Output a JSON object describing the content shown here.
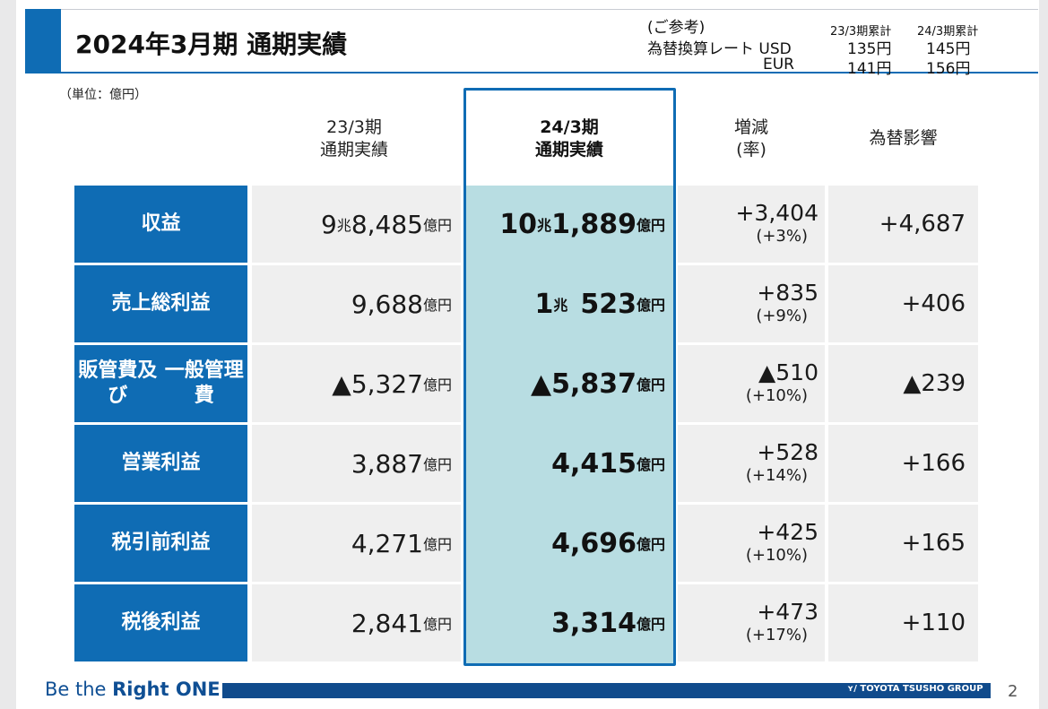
{
  "title": "2024年3月期 通期実績",
  "fx_reference": {
    "heading": "(ご参考)",
    "rate_label": "為替換算レート USD",
    "eur_label": "EUR",
    "col_prev": "23/3期累計",
    "col_curr": "24/3期累計",
    "usd_prev": "135円",
    "usd_curr": "145円",
    "eur_prev": "141円",
    "eur_curr": "156円"
  },
  "unit_note": "（単位：億円）",
  "columns": {
    "prev": [
      "23/3期",
      "通期実績"
    ],
    "curr": [
      "24/3期",
      "通期実績"
    ],
    "change": [
      "増減",
      "(率)"
    ],
    "fx_effect": "為替影響"
  },
  "rows": [
    {
      "label": [
        "収益"
      ],
      "prev_big": "9",
      "prev_mid": "兆",
      "prev_main": "8,485",
      "prev_unit": "億円",
      "curr_big": "10",
      "curr_mid": "兆",
      "curr_main": "1,889",
      "curr_unit": "億円",
      "change": "+3,404",
      "rate": "(+3%)",
      "fx": "+4,687"
    },
    {
      "label": [
        "売上総利益"
      ],
      "prev_big": "",
      "prev_mid": "",
      "prev_main": "9,688",
      "prev_unit": "億円",
      "curr_big": "1",
      "curr_mid": "兆",
      "curr_main": "523",
      "curr_unit": "億円",
      "change": "+835",
      "rate": "(+9%)",
      "fx": "+406"
    },
    {
      "label": [
        "販管費及び",
        "一般管理費"
      ],
      "prev_big": "",
      "prev_mid": "",
      "prev_main": "▲5,327",
      "prev_unit": "億円",
      "curr_big": "",
      "curr_mid": "",
      "curr_main": "▲5,837",
      "curr_unit": "億円",
      "change": "▲510",
      "rate": "(+10%)",
      "fx": "▲239"
    },
    {
      "label": [
        "営業利益"
      ],
      "prev_big": "",
      "prev_mid": "",
      "prev_main": "3,887",
      "prev_unit": "億円",
      "curr_big": "",
      "curr_mid": "",
      "curr_main": "4,415",
      "curr_unit": "億円",
      "change": "+528",
      "rate": "(+14%)",
      "fx": "+166"
    },
    {
      "label": [
        "税引前利益"
      ],
      "prev_big": "",
      "prev_mid": "",
      "prev_main": "4,271",
      "prev_unit": "億円",
      "curr_big": "",
      "curr_mid": "",
      "curr_main": "4,696",
      "curr_unit": "億円",
      "change": "+425",
      "rate": "(+10%)",
      "fx": "+165"
    },
    {
      "label": [
        "税後利益"
      ],
      "prev_big": "",
      "prev_mid": "",
      "prev_main": "2,841",
      "prev_unit": "億円",
      "curr_big": "",
      "curr_mid": "",
      "curr_main": "3,314",
      "curr_unit": "億円",
      "change": "+473",
      "rate": "(+17%)",
      "fx": "+110"
    }
  ],
  "footer": {
    "tagline_prefix": "Be the ",
    "tagline_bold": "Right ONE",
    "logo_text": "TOYOTA TSUSHO GROUP",
    "page_number": "2"
  },
  "colors": {
    "brand_blue": "#0f6cb4",
    "highlight": "#b8dde2",
    "cell_gray": "#efefef",
    "footer_navy": "#104b8c"
  }
}
